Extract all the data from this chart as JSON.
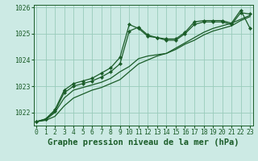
{
  "title": "Graphe pression niveau de la mer (hPa)",
  "bg_color": "#cceae4",
  "grid_color": "#99ccbb",
  "line_color": "#1a5c28",
  "x_hours": [
    0,
    1,
    2,
    3,
    4,
    5,
    6,
    7,
    8,
    9,
    10,
    11,
    12,
    13,
    14,
    15,
    16,
    17,
    18,
    19,
    20,
    21,
    22,
    23
  ],
  "series": [
    [
      1021.65,
      1021.7,
      1021.85,
      1022.25,
      1022.55,
      1022.7,
      1022.85,
      1022.95,
      1023.1,
      1023.25,
      1023.55,
      1023.85,
      1024.0,
      1024.15,
      1024.25,
      1024.4,
      1024.6,
      1024.75,
      1024.95,
      1025.1,
      1025.2,
      1025.3,
      1025.5,
      1025.65
    ],
    [
      1021.65,
      1021.72,
      1022.0,
      1022.55,
      1022.85,
      1022.95,
      1023.05,
      1023.15,
      1023.3,
      1023.55,
      1023.75,
      1024.05,
      1024.15,
      1024.2,
      1024.25,
      1024.45,
      1024.65,
      1024.85,
      1025.05,
      1025.2,
      1025.3,
      1025.4,
      1025.55,
      1025.7
    ],
    [
      1021.65,
      1021.75,
      1022.05,
      1022.75,
      1023.0,
      1023.1,
      1023.2,
      1023.35,
      1023.55,
      1023.85,
      1025.1,
      1025.25,
      1024.95,
      1024.85,
      1024.75,
      1024.75,
      1025.0,
      1025.35,
      1025.45,
      1025.45,
      1025.45,
      1025.35,
      1025.8,
      1025.75
    ],
    [
      1021.65,
      1021.75,
      1022.1,
      1022.85,
      1023.1,
      1023.2,
      1023.3,
      1023.5,
      1023.7,
      1024.1,
      1025.35,
      1025.2,
      1024.9,
      1024.85,
      1024.8,
      1024.8,
      1025.05,
      1025.45,
      1025.5,
      1025.5,
      1025.5,
      1025.4,
      1025.9,
      1025.2
    ]
  ],
  "has_markers": [
    false,
    false,
    true,
    true
  ],
  "ylim": [
    1021.5,
    1026.1
  ],
  "yticks": [
    1022,
    1023,
    1024,
    1025,
    1026
  ],
  "xlim": [
    -0.3,
    23.3
  ],
  "xticks": [
    0,
    1,
    2,
    3,
    4,
    5,
    6,
    7,
    8,
    9,
    10,
    11,
    12,
    13,
    14,
    15,
    16,
    17,
    18,
    19,
    20,
    21,
    22,
    23
  ],
  "title_fontsize": 7.5,
  "tick_fontsize": 5.8,
  "line_width": 0.9,
  "marker_size": 2.2
}
